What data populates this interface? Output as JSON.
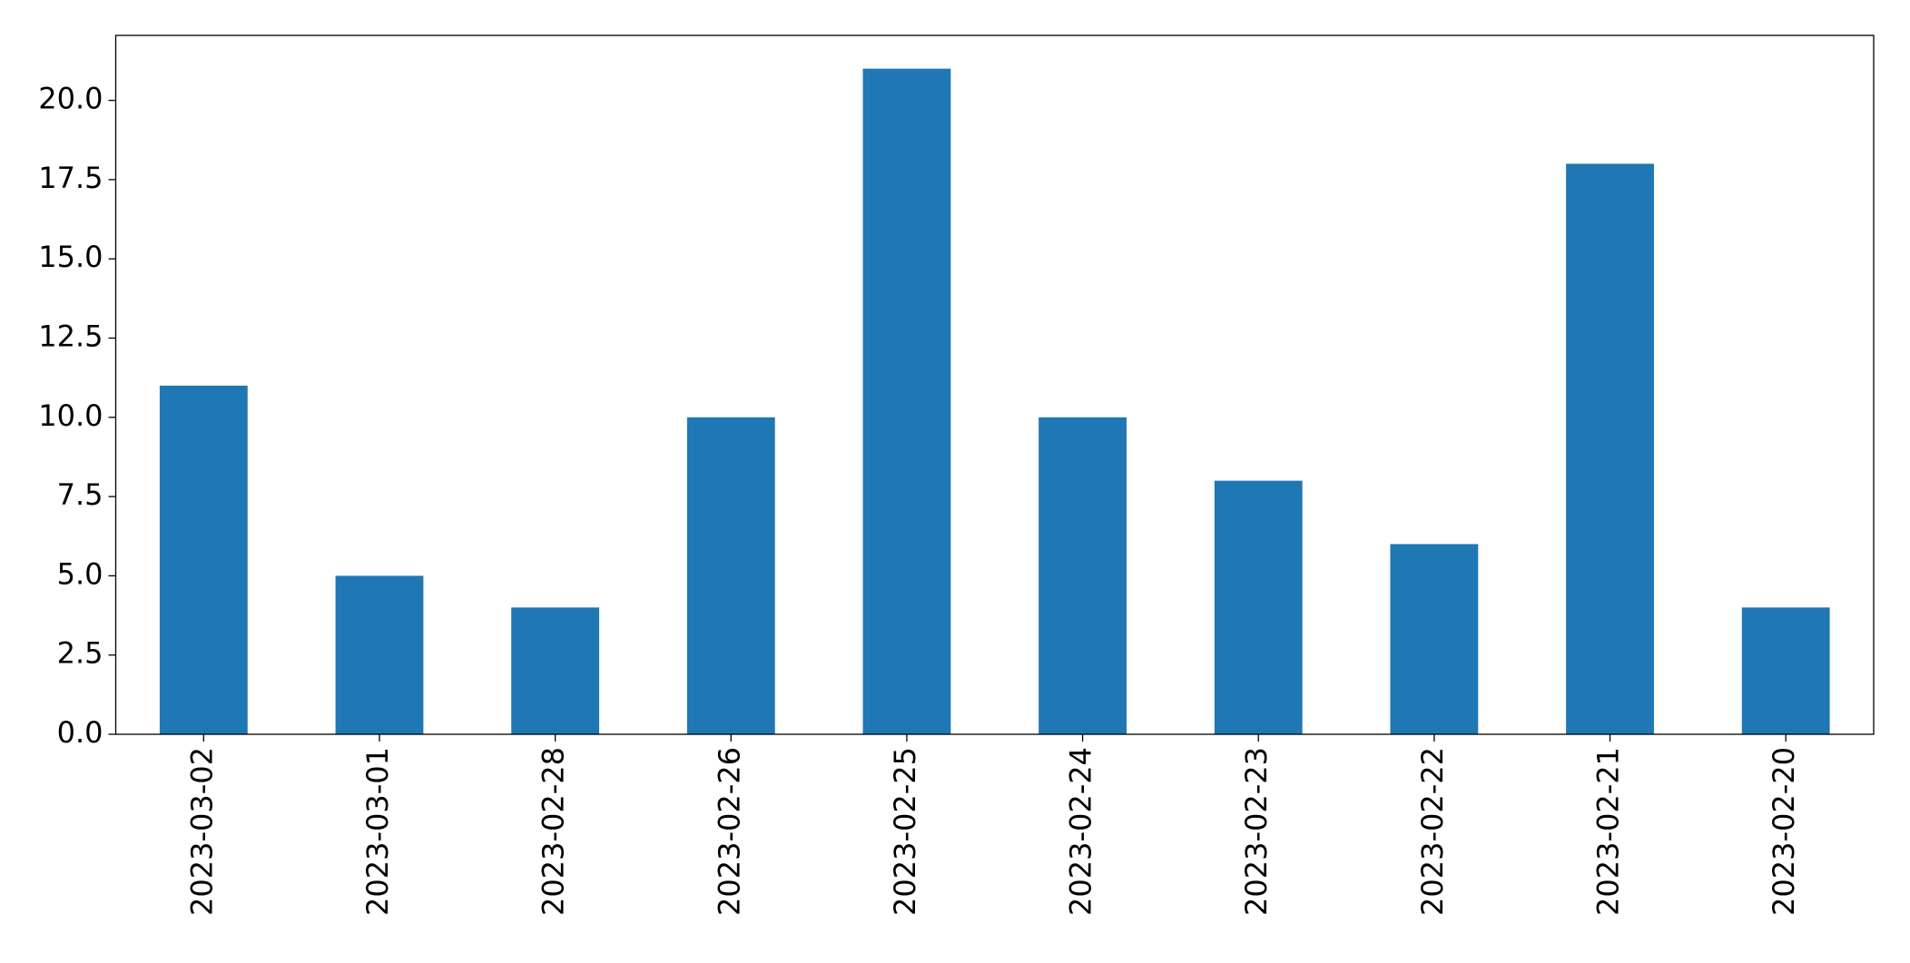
{
  "chart_data": {
    "type": "bar",
    "categories": [
      "2023-03-02",
      "2023-03-01",
      "2023-02-28",
      "2023-02-26",
      "2023-02-25",
      "2023-02-24",
      "2023-02-23",
      "2023-02-22",
      "2023-02-21",
      "2023-02-20"
    ],
    "values": [
      11,
      5,
      4,
      10,
      21,
      10,
      8,
      6,
      18,
      4
    ],
    "color": "#1f77b4",
    "ylim": [
      0,
      22.05
    ],
    "yticks": [
      {
        "value": 0,
        "label": "0.0"
      },
      {
        "value": 2.5,
        "label": "2.5"
      },
      {
        "value": 5,
        "label": "5.0"
      },
      {
        "value": 7.5,
        "label": "7.5"
      },
      {
        "value": 10,
        "label": "10.0"
      },
      {
        "value": 12.5,
        "label": "12.5"
      },
      {
        "value": 15,
        "label": "15.0"
      },
      {
        "value": 17.5,
        "label": "17.5"
      },
      {
        "value": 20,
        "label": "20.0"
      }
    ],
    "grid": false
  }
}
